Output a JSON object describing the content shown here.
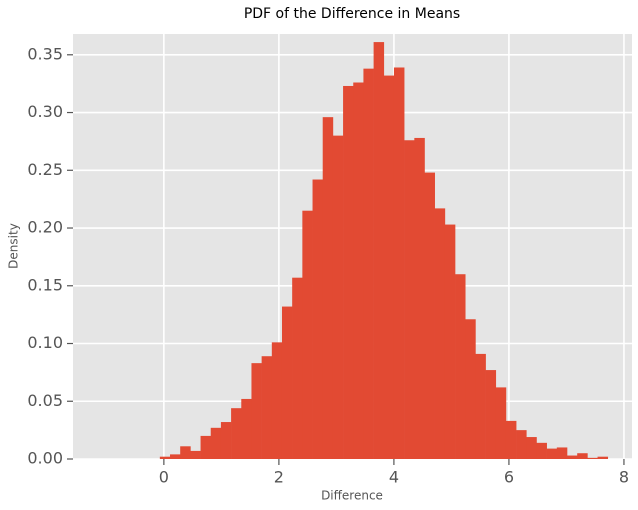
{
  "chart_data": {
    "type": "histogram",
    "title": "PDF of the Difference in Means",
    "x_label": "Difference",
    "y_label": "Density",
    "bins": [
      -0.07,
      0.107,
      0.284,
      0.461,
      0.638,
      0.815,
      0.992,
      1.169,
      1.346,
      1.523,
      1.7,
      1.877,
      2.054,
      2.231,
      2.408,
      2.585,
      2.762,
      2.939,
      3.116,
      3.293,
      3.47,
      3.647,
      3.824,
      4.001,
      4.178,
      4.355,
      4.532,
      4.709,
      4.886,
      5.063,
      5.24,
      5.417,
      5.594,
      5.771,
      5.948,
      6.125,
      6.302,
      6.479,
      6.656,
      6.833,
      7.01,
      7.187,
      7.364,
      7.541,
      7.718
    ],
    "values": [
      0.002,
      0.004,
      0.011,
      0.007,
      0.02,
      0.027,
      0.032,
      0.044,
      0.052,
      0.083,
      0.089,
      0.101,
      0.132,
      0.157,
      0.215,
      0.242,
      0.296,
      0.28,
      0.323,
      0.326,
      0.338,
      0.361,
      0.332,
      0.339,
      0.276,
      0.278,
      0.248,
      0.217,
      0.203,
      0.16,
      0.121,
      0.091,
      0.077,
      0.062,
      0.033,
      0.025,
      0.019,
      0.014,
      0.009,
      0.01,
      0.003,
      0.005,
      0.001,
      0.002
    ],
    "color": "#e24a33",
    "xlim": [
      -1.58,
      8.14
    ],
    "ylim": [
      0,
      0.368
    ],
    "xticks": [
      0,
      2,
      4,
      6,
      8
    ],
    "yticks": [
      {
        "value": 0,
        "label": "0.00"
      },
      {
        "value": 0.05,
        "label": "0.05"
      },
      {
        "value": 0.1,
        "label": "0.10"
      },
      {
        "value": 0.15,
        "label": "0.15"
      },
      {
        "value": 0.2,
        "label": "0.20"
      },
      {
        "value": 0.25,
        "label": "0.25"
      },
      {
        "value": 0.3,
        "label": "0.30"
      },
      {
        "value": 0.35,
        "label": "0.35"
      }
    ],
    "grid": true
  }
}
